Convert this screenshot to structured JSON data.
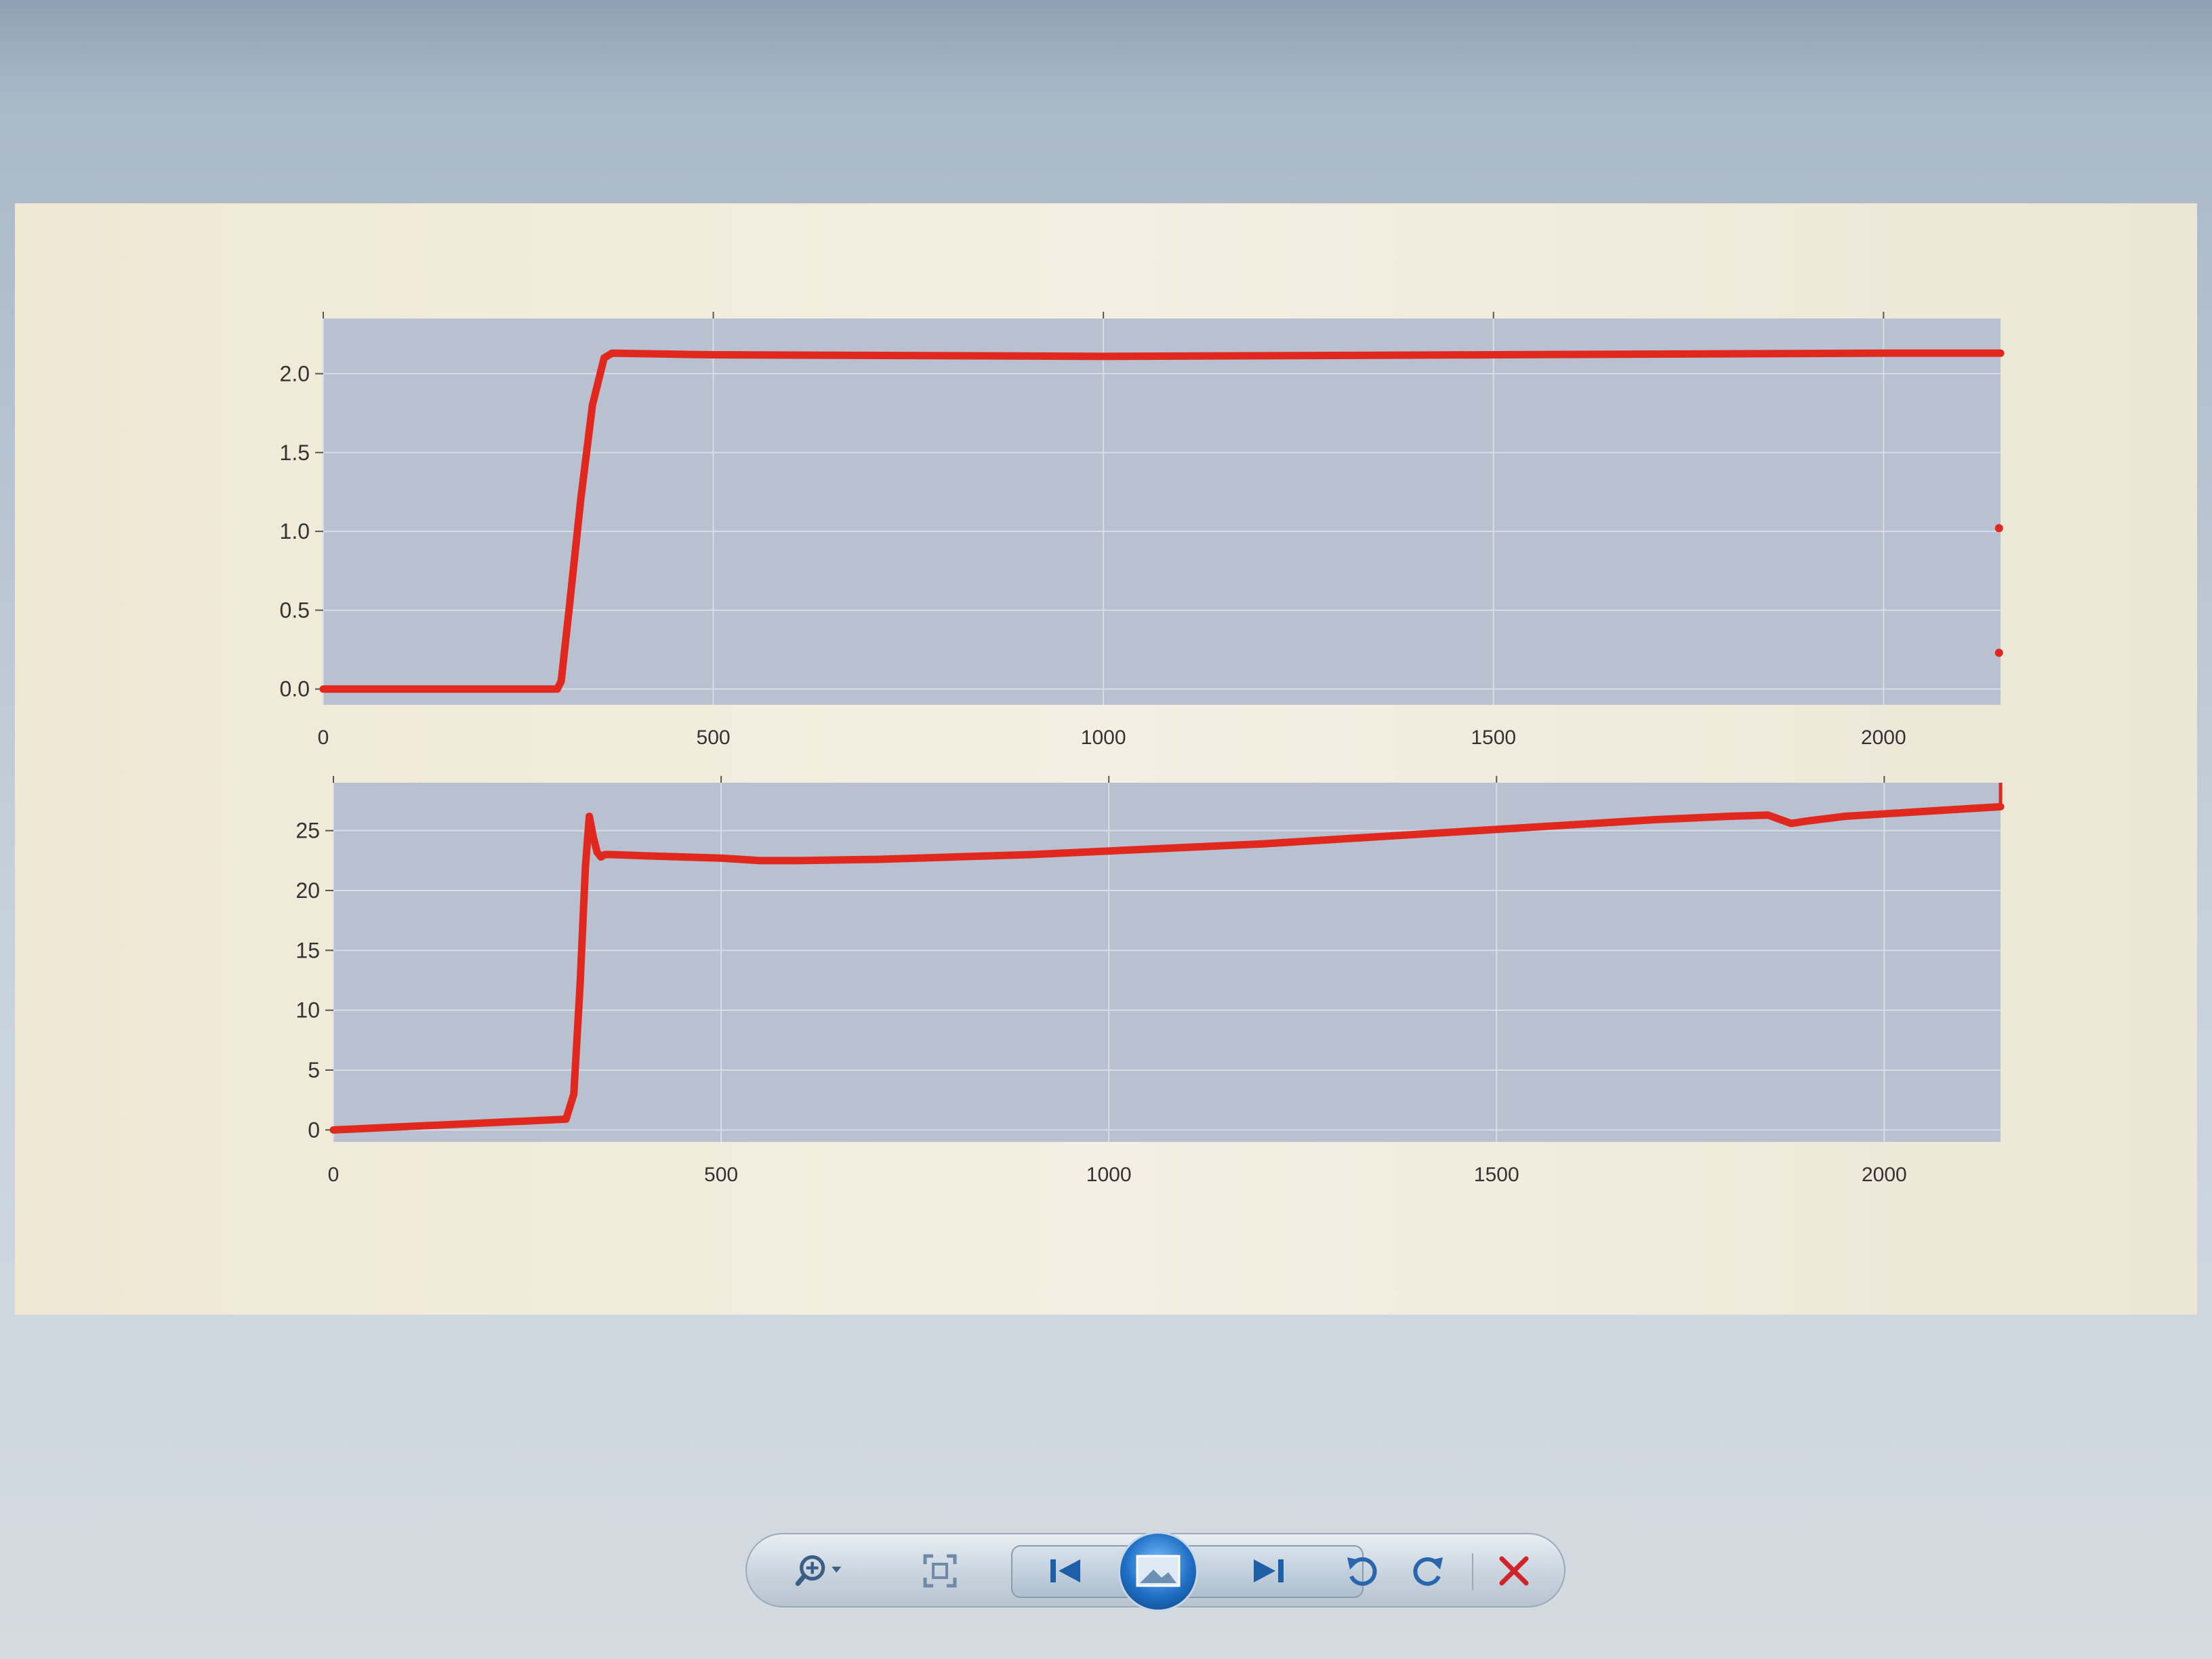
{
  "chart_data": [
    {
      "type": "line",
      "x_ticks": [
        0,
        500,
        1000,
        1500,
        2000
      ],
      "y_ticks": [
        0.0,
        0.5,
        1.0,
        1.5,
        2.0
      ],
      "y_tick_labels": [
        "0.0",
        "0.5",
        "1.0",
        "1.5",
        "2.0"
      ],
      "xlim": [
        0,
        2150
      ],
      "ylim": [
        -0.1,
        2.35
      ],
      "grid": true,
      "series": [
        {
          "color": "#e0281e",
          "x": [
            0,
            50,
            100,
            150,
            200,
            250,
            300,
            305,
            315,
            330,
            345,
            360,
            370,
            500,
            1000,
            1500,
            2000,
            2150
          ],
          "y": [
            0.0,
            0.0,
            0.0,
            0.0,
            0.0,
            0.0,
            0.0,
            0.05,
            0.5,
            1.2,
            1.8,
            2.1,
            2.13,
            2.12,
            2.11,
            2.12,
            2.13,
            2.13
          ]
        },
        {
          "color": "#e0281e",
          "mode": "markers",
          "x": [
            2148,
            2148
          ],
          "y": [
            1.02,
            0.23
          ]
        }
      ]
    },
    {
      "type": "line",
      "x_ticks": [
        0,
        500,
        1000,
        1500,
        2000
      ],
      "y_ticks": [
        0,
        5,
        10,
        15,
        20,
        25
      ],
      "y_tick_labels": [
        "0",
        "5",
        "10",
        "15",
        "20",
        "25"
      ],
      "xlim": [
        0,
        2150
      ],
      "ylim": [
        -1,
        29
      ],
      "grid": true,
      "series": [
        {
          "color": "#e0281e",
          "x": [
            0,
            100,
            200,
            300,
            310,
            318,
            325,
            330,
            335,
            340,
            345,
            350,
            360,
            400,
            450,
            500,
            550,
            600,
            700,
            800,
            900,
            1000,
            1100,
            1200,
            1300,
            1400,
            1500,
            1600,
            1700,
            1800,
            1850,
            1880,
            1900,
            1950,
            2000,
            2050,
            2100,
            2150
          ],
          "y": [
            0,
            0.3,
            0.6,
            0.9,
            3,
            12,
            22,
            26.2,
            24.5,
            23.2,
            22.8,
            23.0,
            23.0,
            22.9,
            22.8,
            22.7,
            22.5,
            22.5,
            22.6,
            22.8,
            23.0,
            23.3,
            23.6,
            23.9,
            24.3,
            24.7,
            25.1,
            25.5,
            25.9,
            26.2,
            26.3,
            25.6,
            25.8,
            26.2,
            26.4,
            26.6,
            26.8,
            27.0
          ]
        },
        {
          "color": "#e0281e",
          "mode": "vline",
          "x": [
            2150,
            2150
          ],
          "y": [
            27.0,
            30
          ]
        }
      ]
    }
  ],
  "toolbar": {
    "buttons": [
      {
        "icon": "zoom-icon"
      },
      {
        "icon": "actual-size-icon"
      },
      {
        "icon": "previous-icon"
      },
      {
        "icon": "slideshow-icon"
      },
      {
        "icon": "next-icon"
      },
      {
        "icon": "rotate-counterclockwise-icon"
      },
      {
        "icon": "rotate-clockwise-icon"
      },
      {
        "icon": "delete-icon"
      }
    ],
    "colors": {
      "accent": "#1f6fc5",
      "delete": "#d0232a",
      "icon": "#3b5f86"
    }
  }
}
